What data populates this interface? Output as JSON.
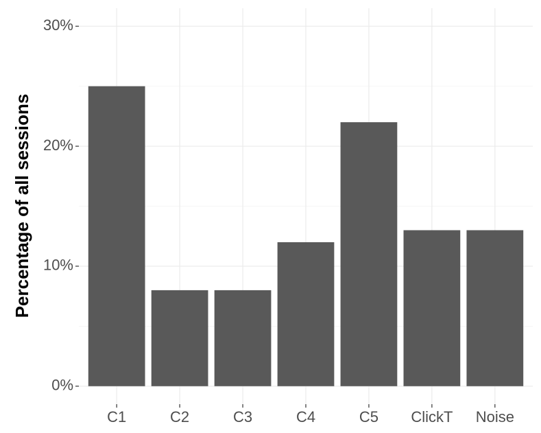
{
  "chart_data": {
    "type": "bar",
    "y_label": "Percentage of all sessions",
    "categories": [
      "C1",
      "C2",
      "C3",
      "C4",
      "C5",
      "ClickT",
      "Noise"
    ],
    "values": [
      25,
      8,
      8,
      12,
      22,
      13,
      13
    ],
    "color": "#595959",
    "ylim": [
      -1.5,
      31.5
    ],
    "yticks": [
      {
        "value": 0,
        "label": "0%"
      },
      {
        "value": 10,
        "label": "10%"
      },
      {
        "value": 20,
        "label": "20%"
      },
      {
        "value": 30,
        "label": "30%"
      }
    ],
    "grid": true
  }
}
